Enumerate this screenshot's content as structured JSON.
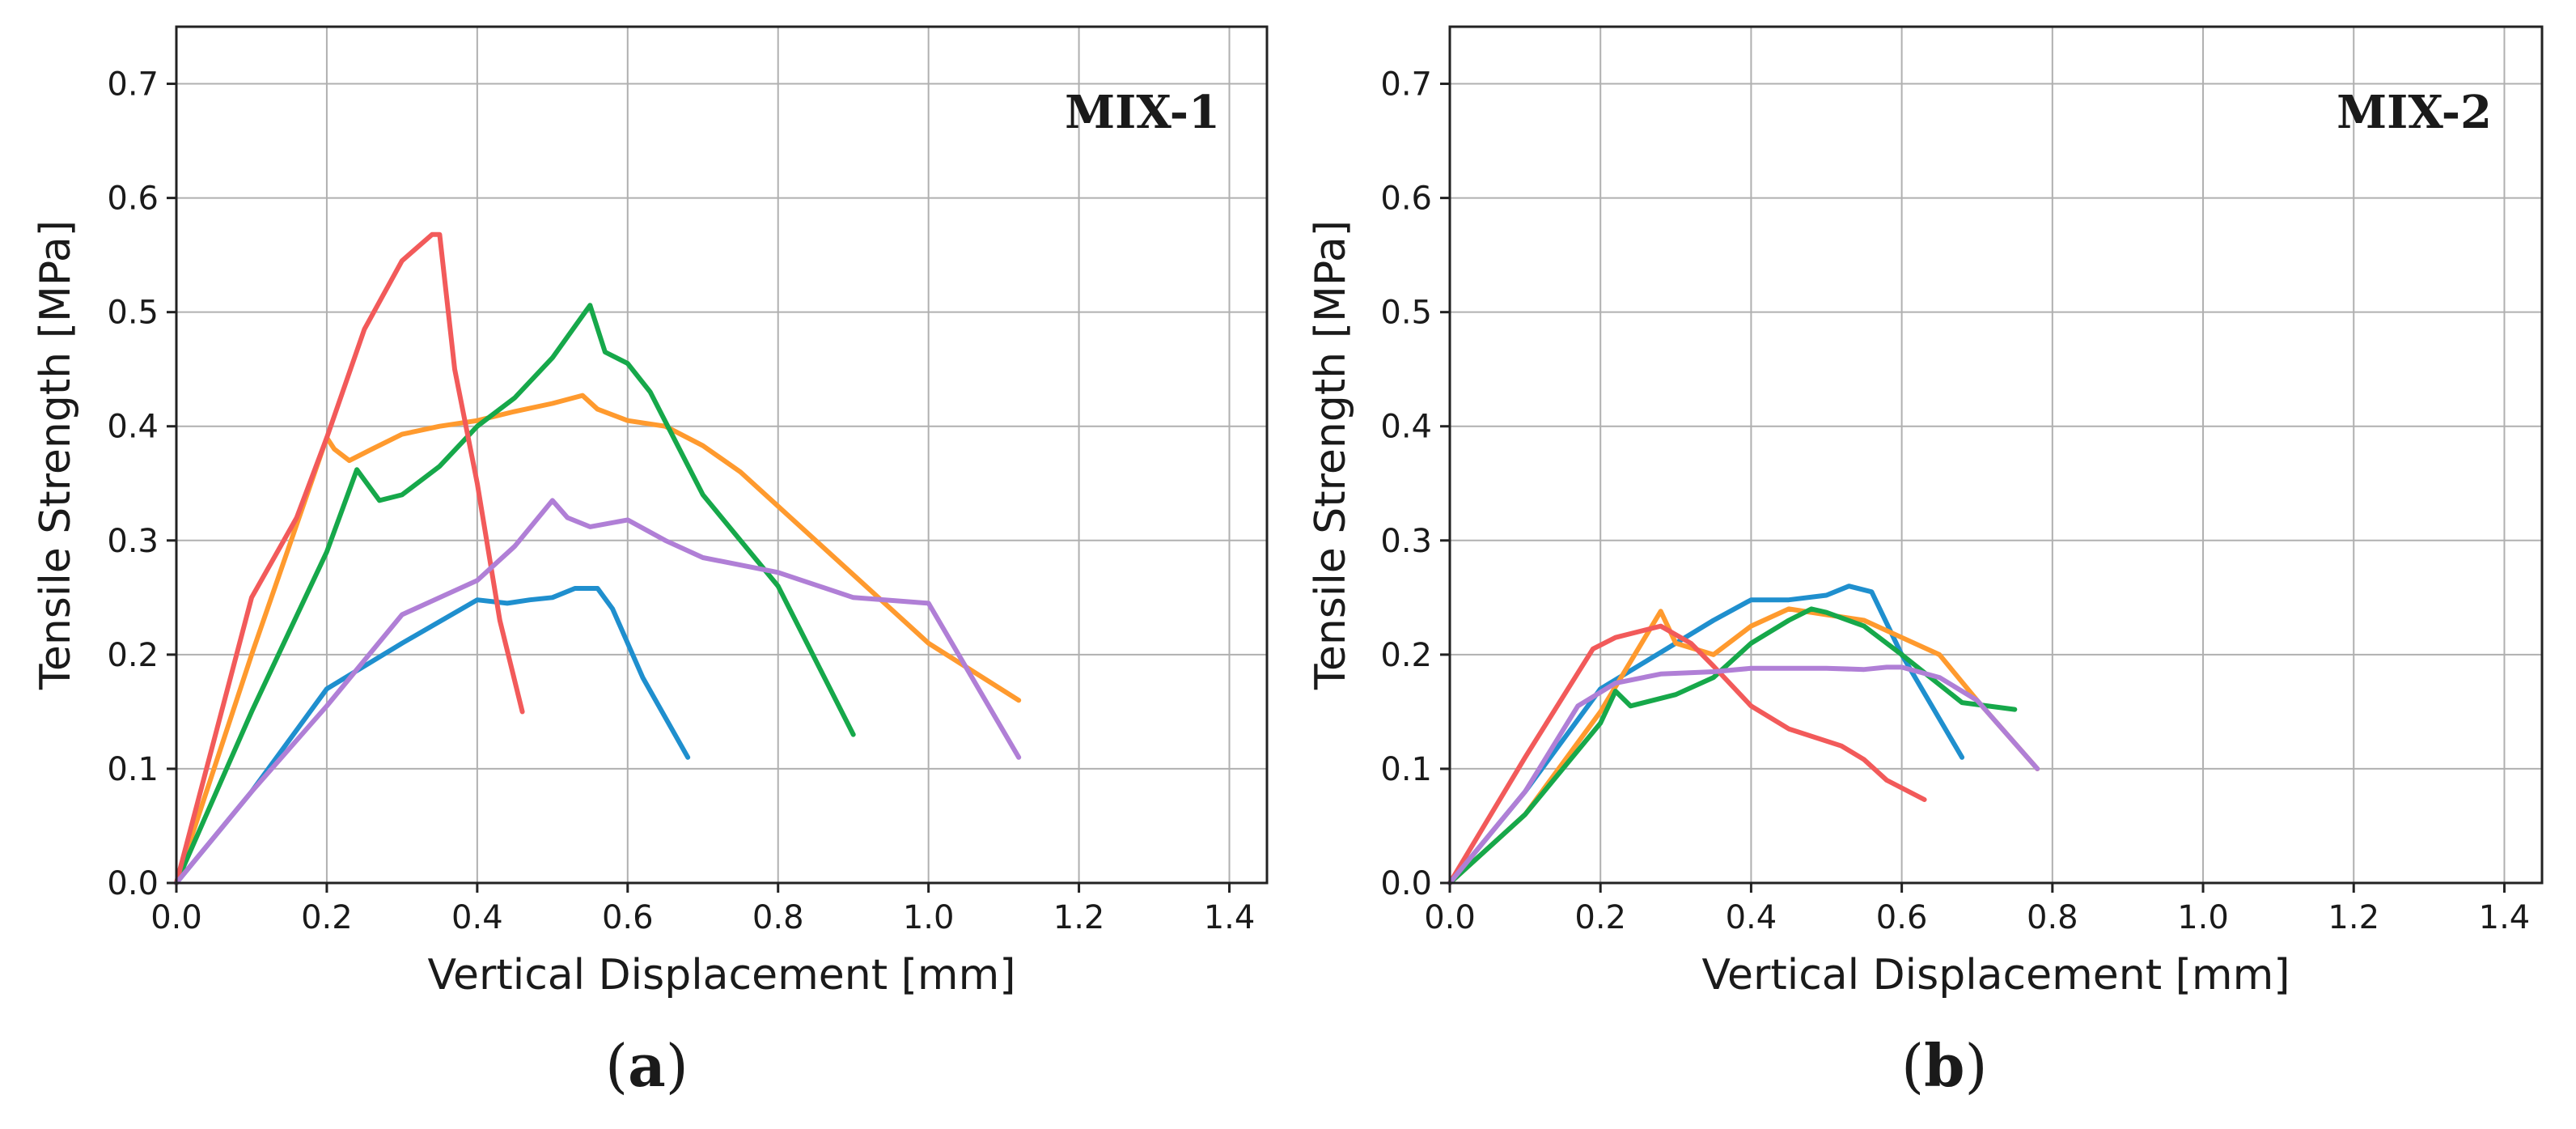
{
  "colors": {
    "blue": "#1f8fce",
    "orange": "#ff9a2e",
    "green": "#16a84a",
    "red": "#f25a5a",
    "purple": "#b07fd6"
  },
  "chart_data": [
    {
      "type": "line",
      "title": "MIX-1",
      "caption_open": "(",
      "caption_letter": "a",
      "caption_close": ")",
      "xlabel": "Vertical Displacement [mm]",
      "ylabel": "Tensile Strength [MPa]",
      "xlim": [
        0.0,
        1.45
      ],
      "ylim": [
        0.0,
        0.75
      ],
      "xticks": [
        "0.0",
        "0.2",
        "0.4",
        "0.6",
        "0.8",
        "1.0",
        "1.2",
        "1.4"
      ],
      "yticks": [
        "0.0",
        "0.1",
        "0.2",
        "0.3",
        "0.4",
        "0.5",
        "0.6",
        "0.7"
      ],
      "grid": true,
      "series": [
        {
          "name": "specimen-blue",
          "color": "#1f8fce",
          "x": [
            0,
            0.1,
            0.2,
            0.3,
            0.4,
            0.44,
            0.47,
            0.5,
            0.53,
            0.56,
            0.58,
            0.62,
            0.68
          ],
          "y": [
            0,
            0.08,
            0.17,
            0.21,
            0.248,
            0.245,
            0.248,
            0.25,
            0.258,
            0.258,
            0.24,
            0.18,
            0.11
          ]
        },
        {
          "name": "specimen-orange",
          "color": "#ff9a2e",
          "x": [
            0,
            0.1,
            0.2,
            0.21,
            0.23,
            0.26,
            0.3,
            0.35,
            0.4,
            0.45,
            0.5,
            0.54,
            0.56,
            0.6,
            0.65,
            0.7,
            0.75,
            0.8,
            0.9,
            1.0,
            1.12
          ],
          "y": [
            0,
            0.2,
            0.39,
            0.38,
            0.37,
            0.38,
            0.393,
            0.4,
            0.405,
            0.413,
            0.42,
            0.427,
            0.415,
            0.405,
            0.4,
            0.383,
            0.36,
            0.33,
            0.27,
            0.21,
            0.16
          ]
        },
        {
          "name": "specimen-green",
          "color": "#16a84a",
          "x": [
            0,
            0.1,
            0.15,
            0.2,
            0.24,
            0.27,
            0.3,
            0.35,
            0.4,
            0.45,
            0.5,
            0.55,
            0.57,
            0.6,
            0.63,
            0.7,
            0.8,
            0.9
          ],
          "y": [
            0,
            0.15,
            0.22,
            0.29,
            0.362,
            0.335,
            0.34,
            0.365,
            0.4,
            0.425,
            0.46,
            0.506,
            0.465,
            0.455,
            0.43,
            0.34,
            0.26,
            0.13
          ]
        },
        {
          "name": "specimen-red",
          "color": "#f25a5a",
          "x": [
            0,
            0.1,
            0.16,
            0.2,
            0.25,
            0.3,
            0.34,
            0.35,
            0.37,
            0.4,
            0.43,
            0.46
          ],
          "y": [
            0,
            0.25,
            0.32,
            0.39,
            0.485,
            0.545,
            0.568,
            0.568,
            0.45,
            0.35,
            0.23,
            0.15
          ]
        },
        {
          "name": "specimen-purple",
          "color": "#b07fd6",
          "x": [
            0,
            0.1,
            0.2,
            0.3,
            0.35,
            0.4,
            0.45,
            0.5,
            0.52,
            0.55,
            0.6,
            0.65,
            0.7,
            0.8,
            0.9,
            1.0,
            1.12
          ],
          "y": [
            0,
            0.08,
            0.155,
            0.235,
            0.25,
            0.265,
            0.295,
            0.335,
            0.32,
            0.312,
            0.318,
            0.3,
            0.285,
            0.272,
            0.25,
            0.245,
            0.11
          ]
        }
      ]
    },
    {
      "type": "line",
      "title": "MIX-2",
      "caption_open": "(",
      "caption_letter": "b",
      "caption_close": ")",
      "xlabel": "Vertical Displacement [mm]",
      "ylabel": "Tensile Strength [MPa]",
      "xlim": [
        0.0,
        1.45
      ],
      "ylim": [
        0.0,
        0.75
      ],
      "xticks": [
        "0.0",
        "0.2",
        "0.4",
        "0.6",
        "0.8",
        "1.0",
        "1.2",
        "1.4"
      ],
      "yticks": [
        "0.0",
        "0.1",
        "0.2",
        "0.3",
        "0.4",
        "0.5",
        "0.6",
        "0.7"
      ],
      "grid": true,
      "series": [
        {
          "name": "specimen-blue",
          "color": "#1f8fce",
          "x": [
            0,
            0.1,
            0.2,
            0.3,
            0.35,
            0.4,
            0.45,
            0.5,
            0.53,
            0.56,
            0.6,
            0.68
          ],
          "y": [
            0,
            0.08,
            0.17,
            0.21,
            0.23,
            0.248,
            0.248,
            0.252,
            0.26,
            0.255,
            0.2,
            0.11
          ]
        },
        {
          "name": "specimen-orange",
          "color": "#ff9a2e",
          "x": [
            0,
            0.1,
            0.2,
            0.25,
            0.28,
            0.3,
            0.35,
            0.4,
            0.45,
            0.5,
            0.55,
            0.6,
            0.65,
            0.7,
            0.78
          ],
          "y": [
            0,
            0.06,
            0.15,
            0.205,
            0.238,
            0.21,
            0.2,
            0.225,
            0.24,
            0.235,
            0.23,
            0.215,
            0.2,
            0.16,
            0.1
          ]
        },
        {
          "name": "specimen-green",
          "color": "#16a84a",
          "x": [
            0,
            0.1,
            0.2,
            0.22,
            0.24,
            0.3,
            0.35,
            0.4,
            0.45,
            0.48,
            0.5,
            0.55,
            0.6,
            0.68,
            0.75
          ],
          "y": [
            0,
            0.06,
            0.14,
            0.168,
            0.155,
            0.165,
            0.18,
            0.21,
            0.23,
            0.24,
            0.237,
            0.225,
            0.2,
            0.158,
            0.152
          ]
        },
        {
          "name": "specimen-red",
          "color": "#f25a5a",
          "x": [
            0,
            0.1,
            0.19,
            0.22,
            0.28,
            0.32,
            0.35,
            0.4,
            0.45,
            0.52,
            0.55,
            0.58,
            0.63
          ],
          "y": [
            0,
            0.11,
            0.205,
            0.215,
            0.225,
            0.21,
            0.19,
            0.155,
            0.135,
            0.12,
            0.108,
            0.09,
            0.073
          ]
        },
        {
          "name": "specimen-purple",
          "color": "#b07fd6",
          "x": [
            0,
            0.1,
            0.17,
            0.22,
            0.28,
            0.35,
            0.4,
            0.45,
            0.5,
            0.55,
            0.58,
            0.6,
            0.65,
            0.7,
            0.78
          ],
          "y": [
            0,
            0.08,
            0.155,
            0.175,
            0.183,
            0.185,
            0.188,
            0.188,
            0.188,
            0.187,
            0.189,
            0.189,
            0.18,
            0.16,
            0.1
          ]
        }
      ]
    }
  ]
}
